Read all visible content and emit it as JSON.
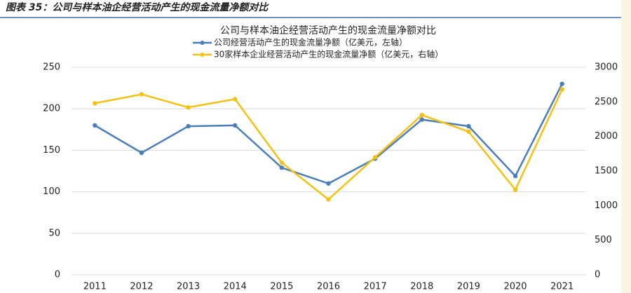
{
  "caption": "图表 35：公司与样本油企经营活动产生的现金流量净额对比",
  "chart_data": {
    "type": "line",
    "title": "公司与样本油企经营活动产生的现金流量净额对比",
    "categories": [
      "2011",
      "2012",
      "2013",
      "2014",
      "2015",
      "2016",
      "2017",
      "2018",
      "2019",
      "2020",
      "2021"
    ],
    "series": [
      {
        "name": "公司经营活动产生的现金流量净额（亿美元，左轴）",
        "color": "#4a7ebb",
        "values": [
          180,
          147,
          179,
          180,
          129,
          110,
          140,
          187,
          179,
          119,
          230
        ]
      },
      {
        "name": "30家样本企业经营活动产生的现金流量净额（亿美元，右轴）",
        "color": "#f5c211",
        "axis": "y2",
        "values": [
          2480,
          2610,
          2420,
          2540,
          1620,
          1090,
          1700,
          2310,
          2070,
          1230,
          2680
        ]
      }
    ],
    "ylim": [
      0,
      250
    ],
    "yticks": [
      0,
      50,
      100,
      150,
      200,
      250
    ],
    "y2lim": [
      0,
      3000
    ],
    "y2ticks": [
      0,
      500,
      1000,
      1500,
      2000,
      2500,
      3000
    ],
    "grid": true,
    "legend": "top"
  }
}
